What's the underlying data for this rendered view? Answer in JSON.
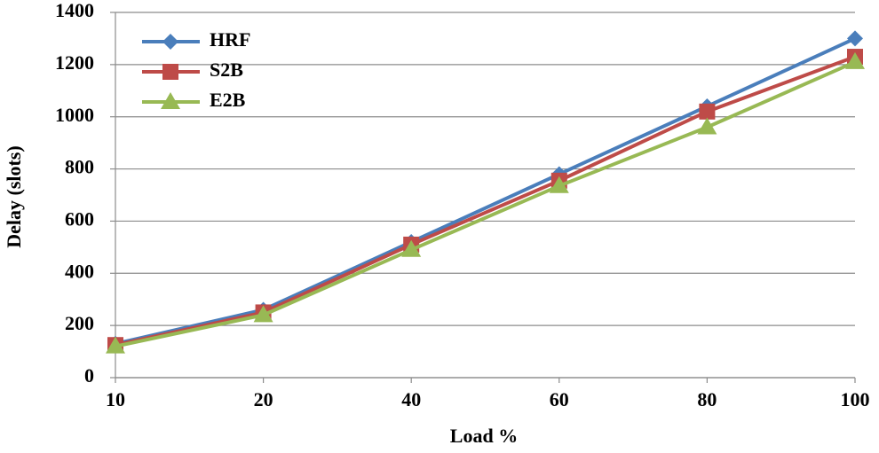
{
  "chart_data": {
    "type": "line",
    "x_label": "Load %",
    "y_label": "Delay (slots)",
    "categories": [
      "10",
      "20",
      "40",
      "60",
      "80",
      "100"
    ],
    "series": [
      {
        "name": "HRF",
        "color": "#4a7ebb",
        "marker": "diamond",
        "values": [
          130,
          260,
          520,
          780,
          1040,
          1300
        ]
      },
      {
        "name": "S2B",
        "color": "#be4b48",
        "marker": "square",
        "values": [
          125,
          250,
          510,
          755,
          1020,
          1230
        ]
      },
      {
        "name": "E2B",
        "color": "#98b954",
        "marker": "triangle",
        "values": [
          120,
          240,
          490,
          735,
          960,
          1210
        ]
      }
    ],
    "ylim": [
      0,
      1400
    ],
    "yticks": [
      0,
      200,
      400,
      600,
      800,
      1000,
      1200,
      1400
    ],
    "grid": true,
    "legend": "top-left"
  }
}
